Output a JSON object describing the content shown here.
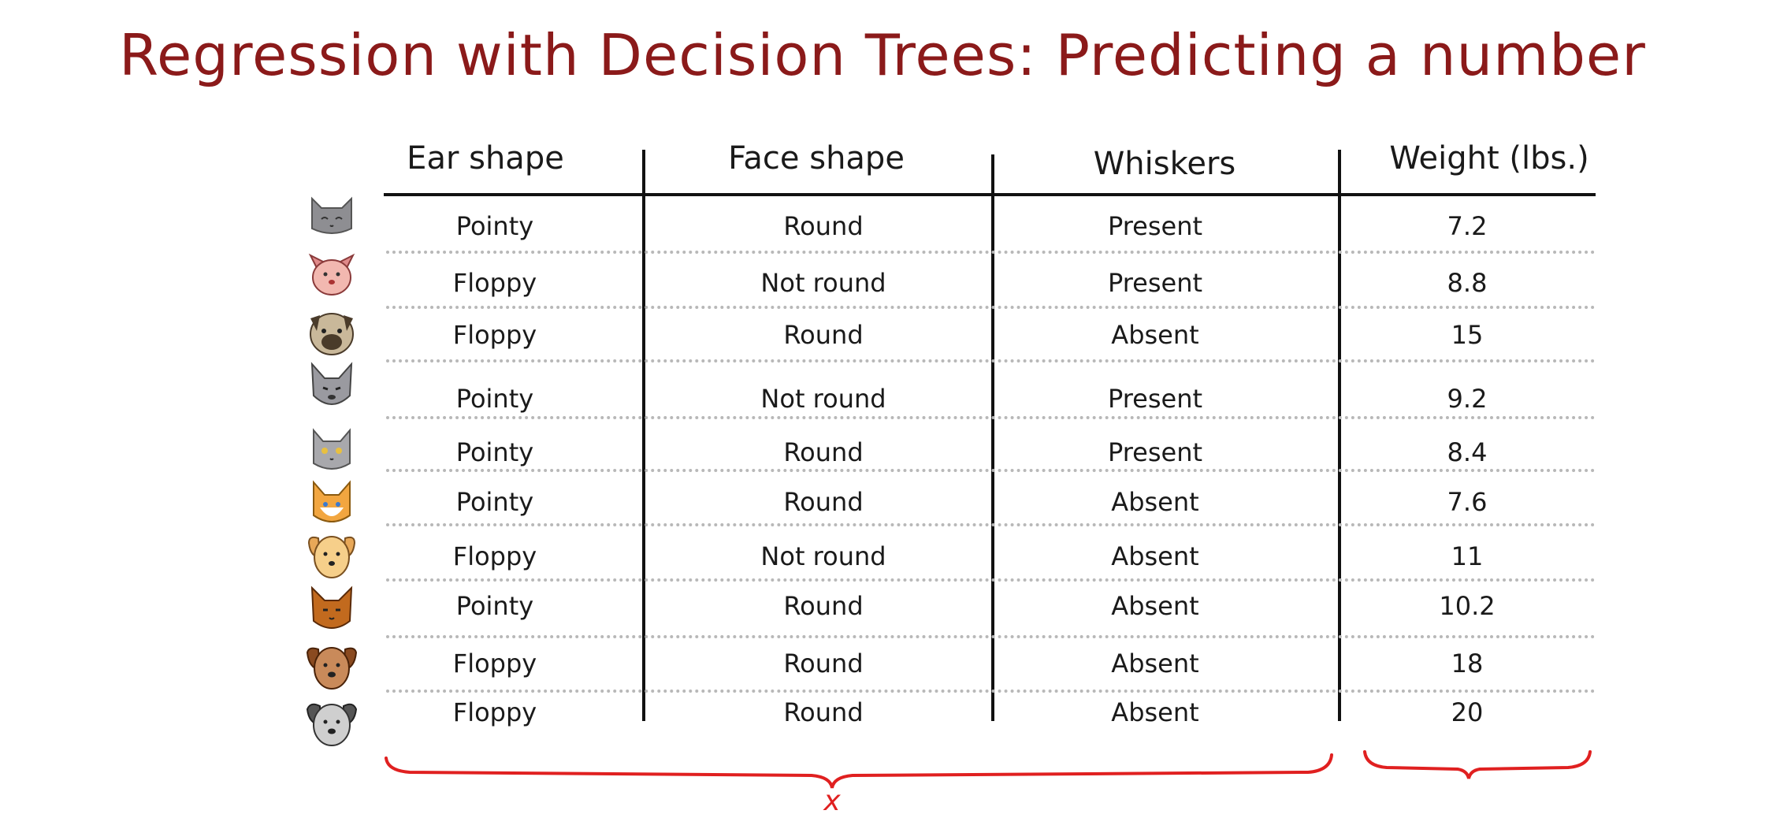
{
  "title": "Regression with Decision Trees: Predicting a number",
  "table": {
    "headers": [
      "Ear shape",
      "Face shape",
      "Whiskers",
      "Weight (lbs.)"
    ],
    "rows": [
      {
        "animal": "gray-cat-icon",
        "ear": "Pointy",
        "face": "Round",
        "whiskers": "Present",
        "weight": "7.2"
      },
      {
        "animal": "pink-dog-icon",
        "ear": "Floppy",
        "face": "Not round",
        "whiskers": "Present",
        "weight": "8.8"
      },
      {
        "animal": "pug-dog-icon",
        "ear": "Floppy",
        "face": "Round",
        "whiskers": "Absent",
        "weight": "15"
      },
      {
        "animal": "gray-wolf-cat-icon",
        "ear": "Pointy",
        "face": "Not round",
        "whiskers": "Present",
        "weight": "9.2"
      },
      {
        "animal": "gray-kitten-icon",
        "ear": "Pointy",
        "face": "Round",
        "whiskers": "Present",
        "weight": "8.4"
      },
      {
        "animal": "orange-cat-icon",
        "ear": "Pointy",
        "face": "Round",
        "whiskers": "Absent",
        "weight": "7.6"
      },
      {
        "animal": "yellow-dog-icon",
        "ear": "Floppy",
        "face": "Not round",
        "whiskers": "Absent",
        "weight": "11"
      },
      {
        "animal": "brown-cat-icon",
        "ear": "Pointy",
        "face": "Round",
        "whiskers": "Absent",
        "weight": "10.2"
      },
      {
        "animal": "brown-dog-icon",
        "ear": "Floppy",
        "face": "Round",
        "whiskers": "Absent",
        "weight": "18"
      },
      {
        "animal": "gray-dog-icon",
        "ear": "Floppy",
        "face": "Round",
        "whiskers": "Absent",
        "weight": "20"
      }
    ]
  },
  "annotation": {
    "x_label": "x",
    "ink_color": "#e02020"
  },
  "colors": {
    "title": "#8b1a1a",
    "text": "#1a1a1a",
    "dotted_rule": "#b8b8b8"
  }
}
